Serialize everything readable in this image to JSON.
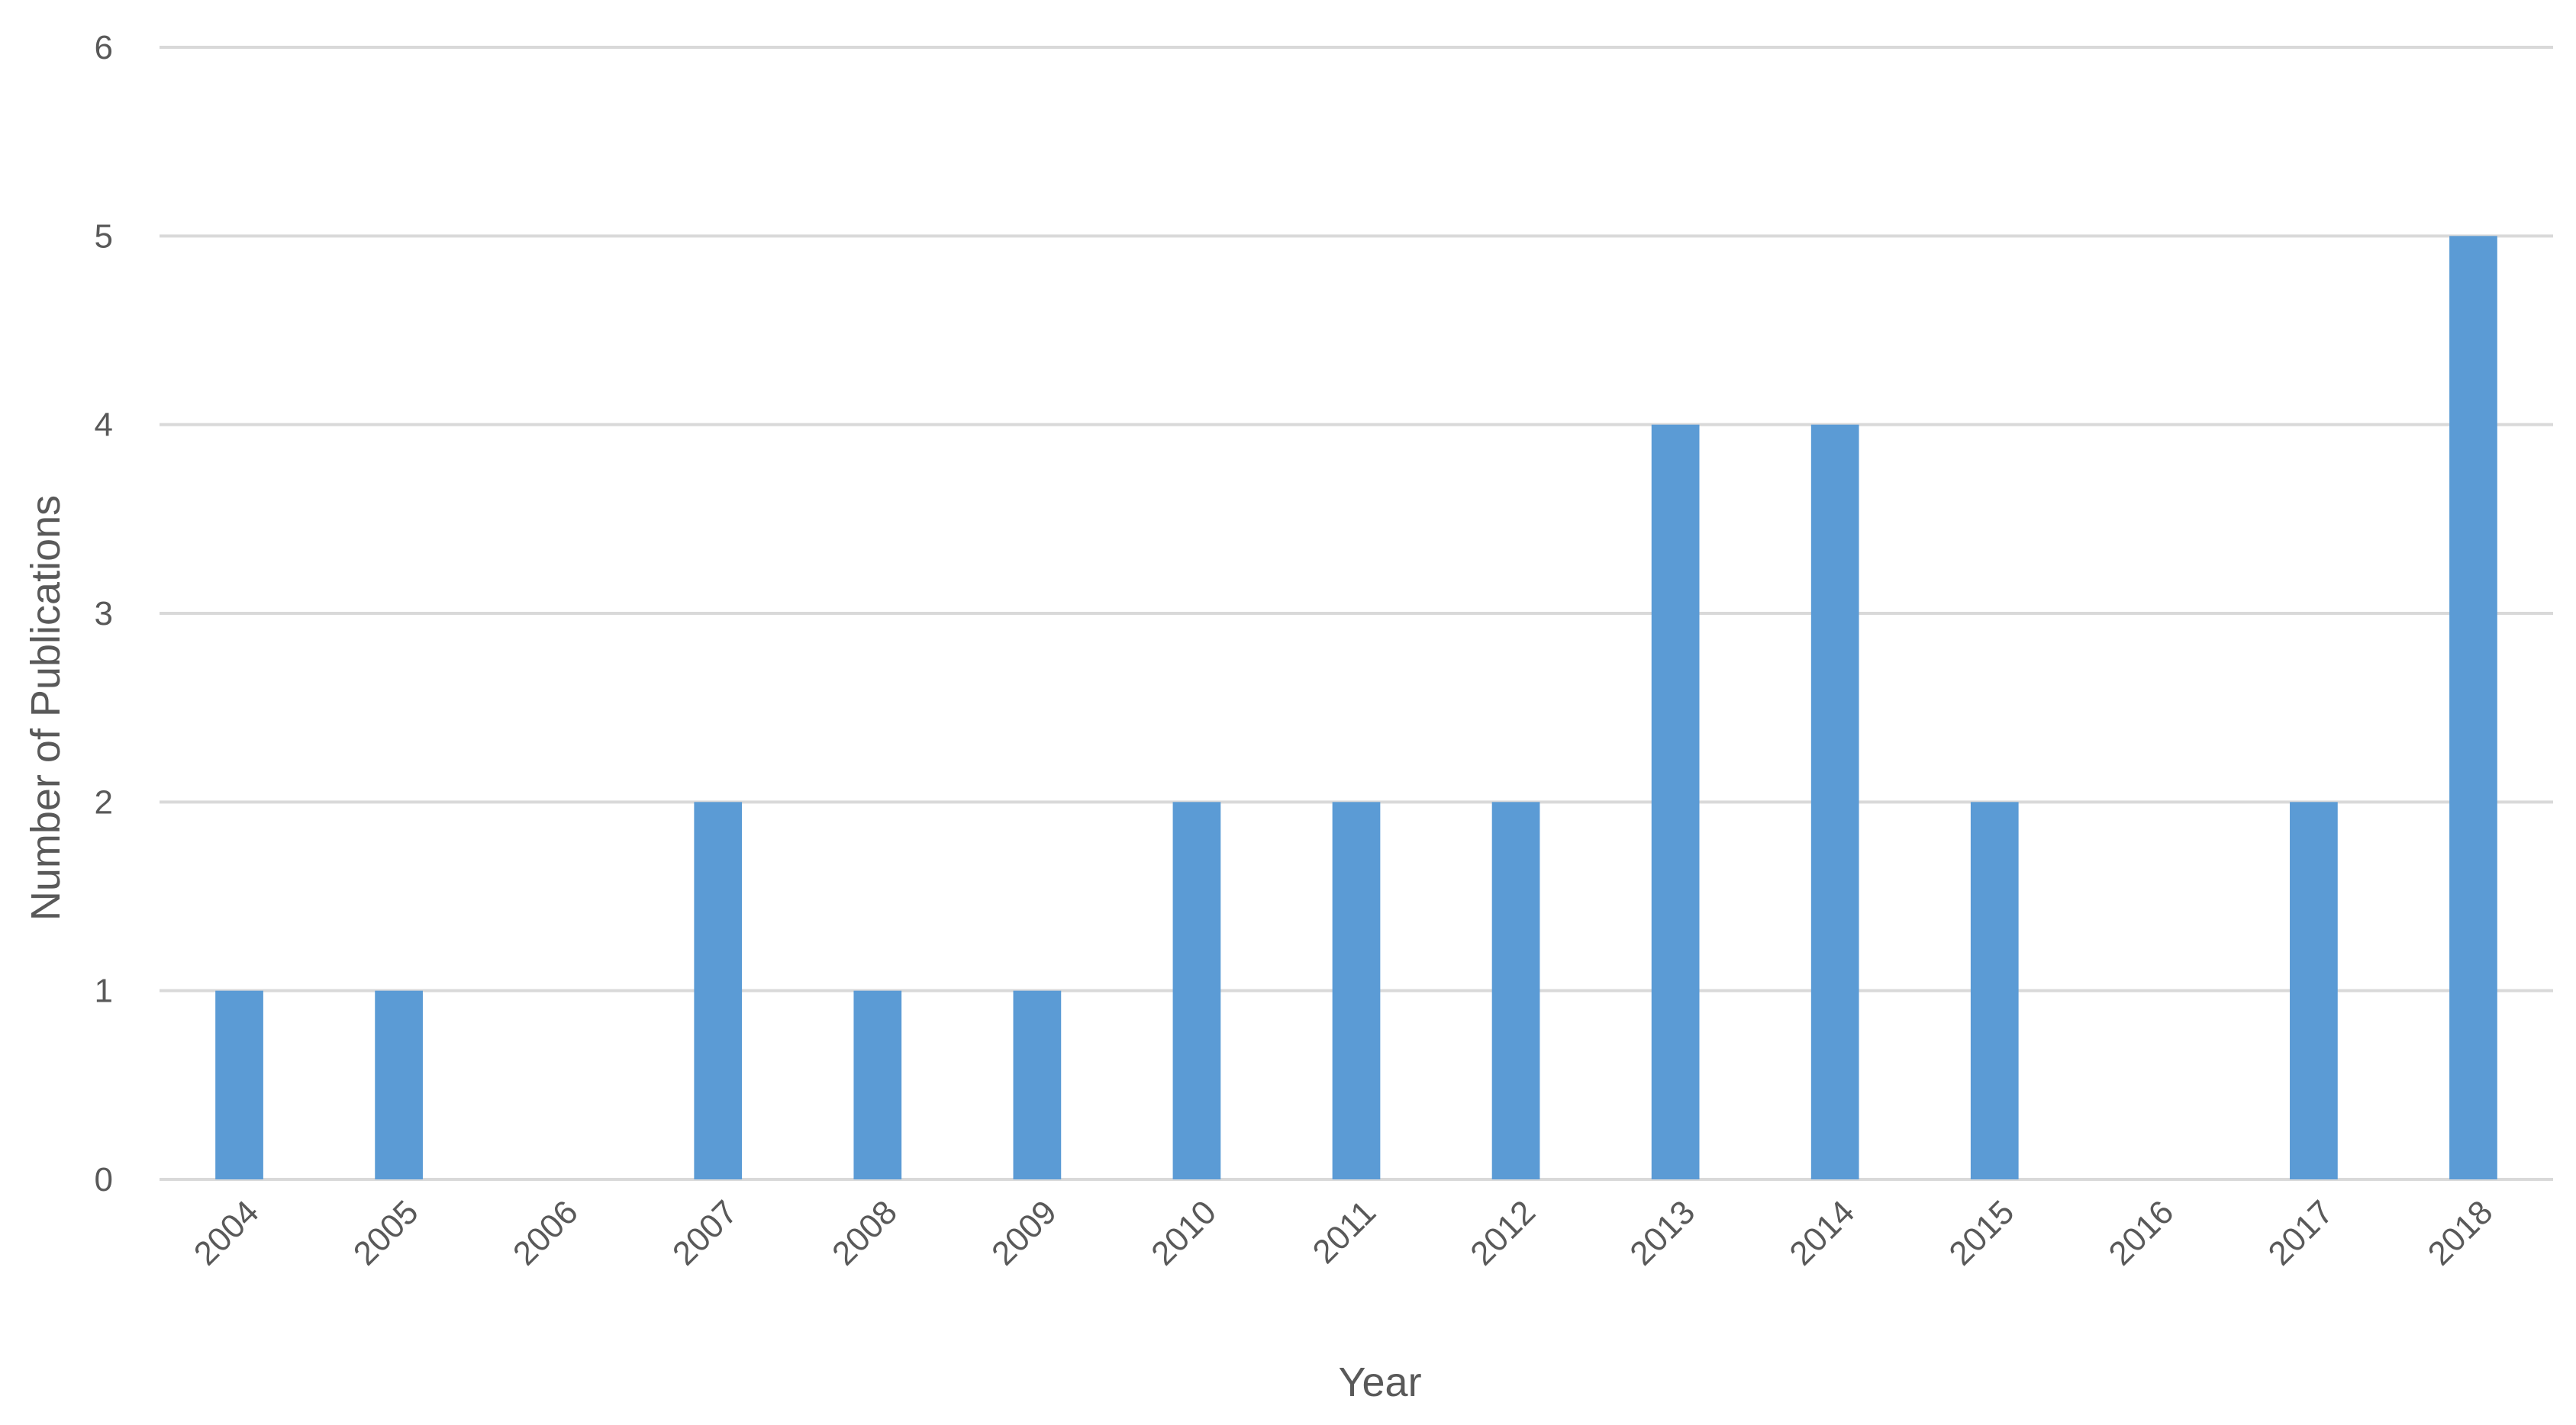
{
  "chart_data": {
    "type": "bar",
    "title": "",
    "xlabel": "Year",
    "ylabel": "Number of Publications",
    "categories": [
      "2004",
      "2005",
      "2006",
      "2007",
      "2008",
      "2009",
      "2010",
      "2011",
      "2012",
      "2013",
      "2014",
      "2015",
      "2016",
      "2017",
      "2018"
    ],
    "series": [
      {
        "values": [
          1,
          1,
          0,
          2,
          1,
          1,
          2,
          2,
          2,
          4,
          4,
          2,
          0,
          2,
          5
        ]
      }
    ],
    "ylim": [
      0,
      6
    ],
    "yticks": [
      "0",
      "1",
      "2",
      "3",
      "4",
      "5",
      "6"
    ],
    "grid": true,
    "legend": "none",
    "bar_color": "#5B9BD5",
    "grid_color": "#D9D9D9",
    "text_color": "#595959"
  }
}
